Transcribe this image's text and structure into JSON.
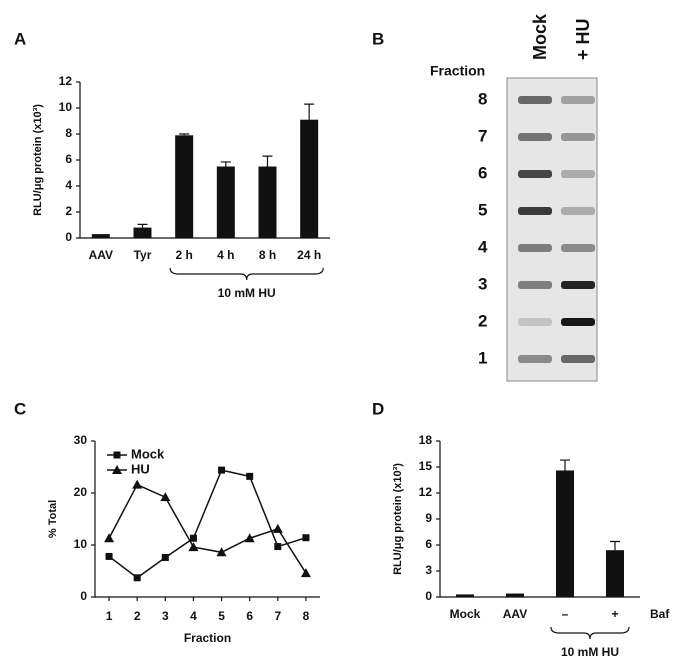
{
  "panels": [
    "A",
    "B",
    "C",
    "D"
  ],
  "gel": {
    "lanes": [
      "Mock",
      "+ HU"
    ],
    "row_header": "Fraction",
    "rows": [
      "8",
      "7",
      "6",
      "5",
      "4",
      "3",
      "2",
      "1"
    ]
  },
  "chart_data": [
    {
      "type": "bar",
      "ylabel": "RLU/μg protein (x10³)",
      "categories": [
        "AAV",
        "Tyr",
        "2 h",
        "4 h",
        "8 h",
        "24 h"
      ],
      "values": [
        0.3,
        0.8,
        7.9,
        5.5,
        5.5,
        9.1
      ],
      "errors": [
        0,
        0.25,
        0.1,
        0.35,
        0.8,
        1.2
      ],
      "color": "#111111",
      "ylim": [
        0,
        12
      ],
      "yticks": [
        0,
        2,
        4,
        6,
        8,
        10,
        12
      ],
      "bracket_label": "10 mM HU"
    },
    {
      "type": "line",
      "xlabel": "Fraction",
      "ylabel": "% Total",
      "x": [
        1,
        2,
        3,
        4,
        5,
        6,
        7,
        8
      ],
      "series": [
        {
          "name": "Mock",
          "color": "#111111",
          "marker": "square",
          "values": [
            7.8,
            3.7,
            7.6,
            11.3,
            24.4,
            23.2,
            9.7,
            11.4
          ]
        },
        {
          "name": "HU",
          "color": "#111111",
          "marker": "triangle",
          "values": [
            11.3,
            21.6,
            19.2,
            9.6,
            8.6,
            11.3,
            13.1,
            4.6
          ]
        }
      ],
      "xlim": [
        0.5,
        8.5
      ],
      "xticks": [
        1,
        2,
        3,
        4,
        5,
        6,
        7,
        8
      ],
      "ylim": [
        0,
        30
      ],
      "yticks": [
        0,
        10,
        20,
        30
      ],
      "legend": "upper left"
    },
    {
      "type": "bar",
      "ylabel": "RLU/μg protein (x10³)",
      "categories": [
        "Mock",
        "AAV",
        "–",
        "+"
      ],
      "values": [
        0.3,
        0.4,
        14.6,
        5.4
      ],
      "errors": [
        0,
        0,
        1.2,
        1.0
      ],
      "color": "#111111",
      "ylim": [
        0,
        18
      ],
      "yticks": [
        0,
        3,
        6,
        9,
        12,
        15,
        18
      ],
      "bracket_label": "10 mM HU",
      "end_label": "Baf"
    }
  ]
}
